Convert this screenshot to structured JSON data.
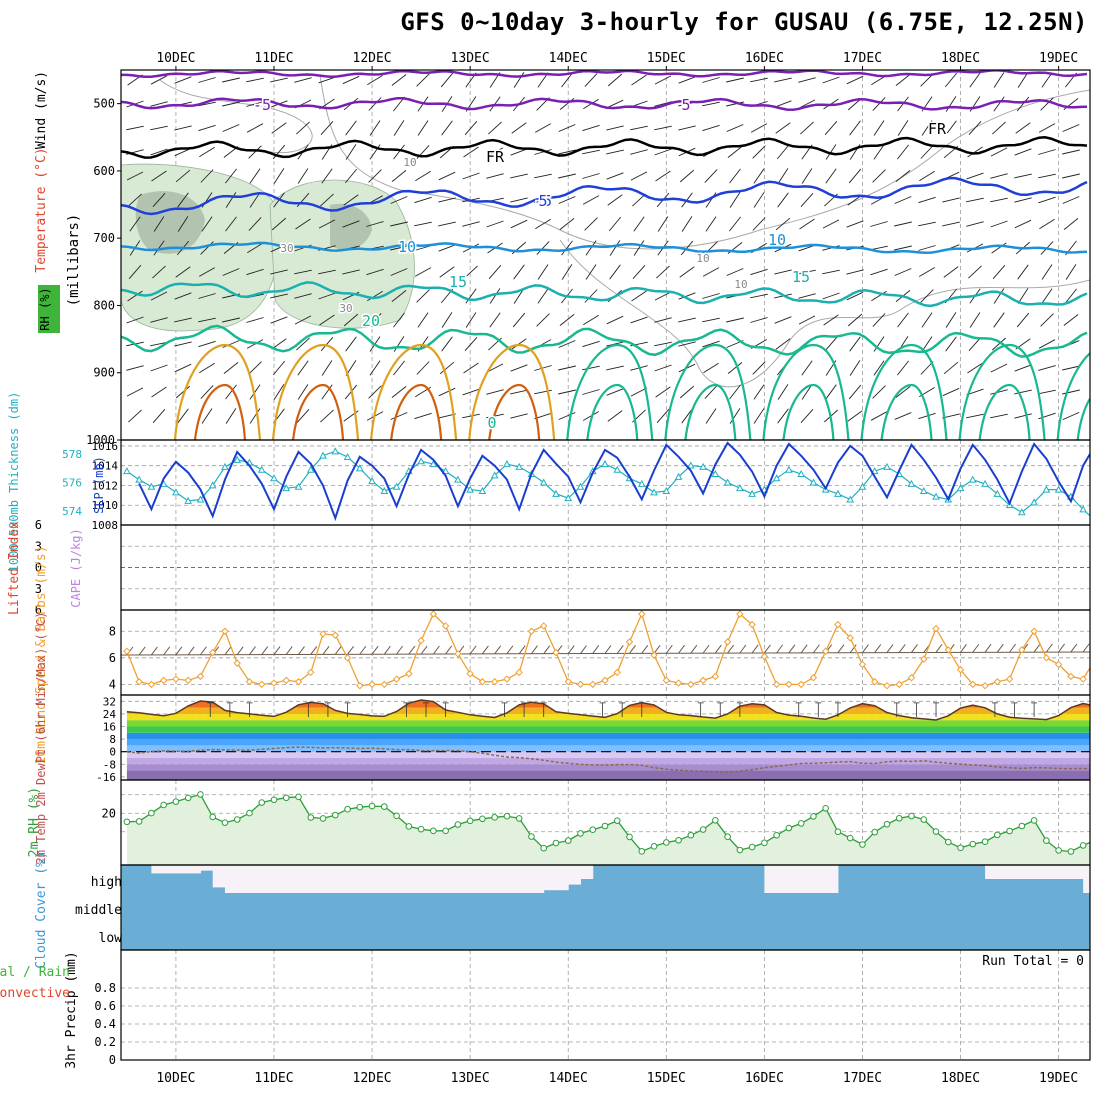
{
  "title": "GFS 0~10day 3-hourly for GUSAU (6.75E, 12.25N)",
  "colors": {
    "grid": "#9e9e9e",
    "temp_purple": "#7a1fb3",
    "temp_black": "#000000",
    "temp_blue": "#1f3fd8",
    "temp_lightblue": "#1e90d8",
    "temp_teal": "#1ab0b0",
    "temp_green": "#18b890",
    "temp_orange": "#e0a020",
    "temp_darkorange": "#d06010",
    "temp_magenta": "#c0107a",
    "rh_fill": "#d8ead4",
    "rh_dark": "#9aaa96",
    "slp": "#1a3fcf",
    "thickness": "#20b0c0",
    "wind": "#f0a030",
    "rh2m": "#2e9e3a",
    "cloud": "#6aaed6",
    "lifted": "#e0452d",
    "cape": "#c080e0"
  },
  "chart_data": [
    {
      "id": "upper_air",
      "type": "contour",
      "ylabel_parts": [
        "Wind (m/s)",
        "Temperature (°C)",
        "(millibars)",
        "RH (%)"
      ],
      "ytick_labels": [
        "500",
        "600",
        "700",
        "800",
        "900",
        "1000"
      ],
      "yticks": [
        500,
        600,
        700,
        800,
        900,
        1000
      ],
      "ylim": [
        1000,
        450
      ],
      "contour_labels": [
        "-5",
        "5",
        "FR",
        "FR",
        "-5",
        "5",
        "10",
        "10",
        "15",
        "15",
        "20",
        "0",
        "10",
        "10",
        "10",
        "30",
        "30"
      ]
    },
    {
      "id": "slp_thickness",
      "type": "line",
      "ylabel_left": "1000-500mb Thickness (dm)",
      "ylabel_right": "SLP (mb)",
      "left_tick_labels": [
        "578",
        "576",
        "574"
      ],
      "left_ticks": [
        578,
        576,
        574
      ],
      "right_tick_labels": [
        "1016",
        "1014",
        "1012",
        "1010",
        "1008"
      ],
      "right_ticks": [
        1016,
        1014,
        1012,
        1010,
        1008
      ],
      "thickness_ylim": [
        573,
        579
      ],
      "slp_ylim": [
        1008,
        1016.6
      ],
      "series": [
        {
          "name": "1000-500mb Thickness (dm)",
          "axis": "left",
          "values": [
            576.8,
            576.2,
            575.7,
            575.9,
            575.3,
            574.7,
            574.8,
            575.8,
            577.1,
            577.6,
            577.4,
            576.9,
            576.3,
            575.6,
            575.7,
            576.9,
            577.9,
            578.2,
            577.8,
            577.0,
            576.1,
            575.4,
            575.7,
            576.8,
            577.5,
            577.3,
            576.8,
            576.2,
            575.5,
            575.4,
            576.5,
            577.3,
            577.1,
            576.6,
            576.0,
            575.2,
            574.9,
            575.7,
            576.8,
            577.3,
            576.9,
            576.3,
            575.9,
            575.3,
            575.4,
            576.4,
            577.2,
            577.1,
            576.6,
            576.0,
            575.6,
            575.2,
            575.5,
            576.3,
            576.9,
            576.6,
            576.0,
            575.5,
            575.2,
            574.8,
            575.7,
            576.8,
            577.1,
            576.6,
            575.9,
            575.4,
            575.0,
            574.8,
            575.6,
            576.2,
            575.9,
            575.2,
            574.4,
            573.9,
            574.6,
            575.5,
            575.5,
            575.0,
            574.1,
            573.3,
            572.6
          ]
        },
        {
          "name": "SLP (mb)",
          "axis": "right",
          "values": [
            1012.2,
            1009.6,
            1012.7,
            1014.4,
            1013.3,
            1011.6,
            1008.9,
            1012.6,
            1015.4,
            1014.0,
            1012.2,
            1009.6,
            1012.9,
            1015.4,
            1014.2,
            1012.0,
            1008.7,
            1012.5,
            1014.9,
            1014.0,
            1012.7,
            1009.9,
            1013.1,
            1015.6,
            1014.6,
            1013.0,
            1009.9,
            1012.7,
            1015.0,
            1014.0,
            1012.6,
            1009.6,
            1013.2,
            1015.6,
            1014.2,
            1012.9,
            1010.3,
            1013.3,
            1015.6,
            1014.8,
            1012.9,
            1010.6,
            1013.5,
            1016.1,
            1014.9,
            1013.5,
            1011.2,
            1014.1,
            1016.3,
            1015.1,
            1013.4,
            1010.9,
            1014.0,
            1016.2,
            1015.0,
            1013.6,
            1011.7,
            1014.3,
            1016.0,
            1015.0,
            1012.9,
            1010.8,
            1013.5,
            1016.1,
            1014.6,
            1012.8,
            1010.6,
            1013.7,
            1016.1,
            1014.6,
            1012.6,
            1010.2,
            1013.4,
            1016.2,
            1014.7,
            1012.4,
            1010.4,
            1014.0,
            1016.1,
            1015.2,
            1016.5
          ]
        }
      ]
    },
    {
      "id": "li_cape",
      "type": "line",
      "ylabel_left": "Lifted Index",
      "ylabel_right": "CAPE (J/kg)",
      "ytick_labels": [
        "6",
        "3",
        "0",
        "3",
        "6"
      ],
      "yticks": [
        6,
        3,
        0,
        -3,
        -6
      ],
      "ylim": [
        -6,
        6
      ],
      "series": []
    },
    {
      "id": "wind10m",
      "type": "line",
      "ylabel": "10m Wind Speed & Barbs (m/s)",
      "ytick_labels": [
        "8",
        "6",
        "4"
      ],
      "yticks": [
        8,
        6,
        4
      ],
      "ylim": [
        3.2,
        9.6
      ],
      "series": [
        {
          "name": "10m Wind Speed",
          "values": [
            6.5,
            4.2,
            4.0,
            4.3,
            4.4,
            4.3,
            4.6,
            6.4,
            8.0,
            5.6,
            4.2,
            4.0,
            4.1,
            4.3,
            4.2,
            4.9,
            7.8,
            7.7,
            6.0,
            3.9,
            4.0,
            4.0,
            4.4,
            4.8,
            7.3,
            9.3,
            8.4,
            6.3,
            4.8,
            4.2,
            4.2,
            4.4,
            4.9,
            8.0,
            8.4,
            6.4,
            4.2,
            4.0,
            4.0,
            4.3,
            4.9,
            7.2,
            9.3,
            6.2,
            4.3,
            4.1,
            4.0,
            4.3,
            4.6,
            7.2,
            9.3,
            8.5,
            6.1,
            4.0,
            4.0,
            4.0,
            4.5,
            6.5,
            8.5,
            7.5,
            5.5,
            4.2,
            3.9,
            4.0,
            4.5,
            5.9,
            8.2,
            6.6,
            5.1,
            4.0,
            3.9,
            4.2,
            4.4,
            6.6,
            8.0,
            6.0,
            5.5,
            4.6,
            4.4,
            5.9,
            7.6
          ]
        }
      ]
    },
    {
      "id": "temp2m",
      "type": "area",
      "ylabel": "2m Temp 2m DewPt (6hr Min/Max) (°C)",
      "ytick_labels": [
        "32",
        "24",
        "16",
        "8",
        "0",
        "-8",
        "-16"
      ],
      "yticks": [
        32,
        24,
        16,
        8,
        0,
        -8,
        -16
      ],
      "ylim": [
        -18,
        36
      ],
      "series": [
        {
          "name": "2m Temp",
          "values": [
            25.4,
            24.7,
            23.7,
            22.8,
            24.4,
            29.1,
            32.2,
            31.5,
            26.2,
            24.8,
            24.0,
            23.1,
            22.4,
            25.1,
            29.8,
            31.3,
            30.5,
            26.2,
            24.3,
            23.6,
            22.7,
            22.5,
            25.5,
            30.8,
            32.8,
            31.8,
            26.5,
            25.0,
            23.4,
            22.5,
            21.7,
            24.6,
            29.8,
            31.4,
            30.4,
            25.3,
            24.3,
            23.4,
            22.6,
            21.8,
            24.2,
            29.4,
            31.2,
            29.7,
            25.0,
            23.4,
            22.9,
            22.0,
            21.3,
            23.9,
            28.9,
            30.4,
            29.7,
            24.9,
            23.2,
            22.5,
            21.4,
            20.6,
            23.3,
            27.8,
            30.5,
            29.2,
            24.9,
            22.9,
            21.5,
            20.8,
            20.1,
            22.8,
            27.7,
            29.5,
            27.9,
            24.0,
            21.9,
            21.2,
            20.8,
            20.4,
            22.9,
            28.0,
            30.6,
            29.0,
            24.1,
            22.3,
            21.4,
            20.8,
            20.1,
            19.2,
            18.7
          ]
        },
        {
          "name": "2m DewPt",
          "values": [
            -0.1,
            -0.9,
            0.1,
            0.5,
            0.3,
            0.3,
            0.9,
            1.4,
            1.1,
            1.0,
            1.0,
            1.5,
            2.0,
            2.6,
            2.9,
            2.7,
            2.4,
            2.6,
            2.3,
            2.0,
            2.2,
            1.8,
            1.3,
            1.3,
            0.6,
            0.6,
            0.7,
            0.6,
            0.0,
            -1.0,
            -2.3,
            -3.4,
            -3.8,
            -4.5,
            -5.4,
            -6.6,
            -7.4,
            -8.1,
            -8.4,
            -8.5,
            -8.2,
            -8.2,
            -8.6,
            -10.2,
            -11.2,
            -11.8,
            -12.2,
            -12.5,
            -12.8,
            -13.1,
            -12.5,
            -11.4,
            -10.2,
            -9.3,
            -8.4,
            -7.5,
            -7.4,
            -7.1,
            -6.6,
            -6.3,
            -7.4,
            -7.5,
            -6.4,
            -6.0,
            -6.2,
            -5.8,
            -6.6,
            -7.4,
            -7.9,
            -8.5,
            -8.8,
            -9.7,
            -10.2,
            -10.6,
            -10.1,
            -10.3,
            -10.6,
            -10.8,
            -10.7,
            -11.3,
            -11.9,
            -11.7,
            -11.5,
            -11.1,
            -10.6,
            -10.5,
            -9.3
          ]
        }
      ]
    },
    {
      "id": "rh2m",
      "type": "line",
      "ylabel": "2m RH (%)",
      "ytick_labels": [
        "20"
      ],
      "yticks": [
        20
      ],
      "ylim": [
        -8,
        38
      ],
      "series": [
        {
          "name": "2m RH",
          "values": [
            15.4,
            15.6,
            20.1,
            24.5,
            26.3,
            28.3,
            30.2,
            18.0,
            14.9,
            16.6,
            20.1,
            25.8,
            27.3,
            28.4,
            28.9,
            17.7,
            17.2,
            19.0,
            22.2,
            23.3,
            23.9,
            23.6,
            18.6,
            12.9,
            11.4,
            10.5,
            10.5,
            13.9,
            15.9,
            17.0,
            17.8,
            18.4,
            17.2,
            7.4,
            1.1,
            3.9,
            5.2,
            9.1,
            11.1,
            13.1,
            16.0,
            7.2,
            -0.6,
            2.1,
            4.2,
            5.4,
            8.1,
            11.2,
            16.2,
            7.3,
            0.1,
            1.7,
            4.0,
            8.1,
            12.0,
            14.5,
            18.3,
            22.7,
            10.0,
            6.6,
            3.1,
            9.8,
            14.1,
            17.3,
            18.5,
            16.6,
            10.1,
            4.4,
            1.3,
            3.3,
            4.6,
            8.3,
            10.4,
            13.1,
            16.1,
            5.2,
            -0.1,
            -0.7,
            2.6,
            5.4,
            13.5,
            14.6,
            16.2,
            17.8,
            21.3
          ]
        }
      ]
    },
    {
      "id": "cloud",
      "type": "area",
      "ylabel": "Cloud Cover (%)",
      "ytick_labels": [
        "high",
        "middle",
        "low"
      ],
      "series": [
        {
          "name": "high cloud fraction",
          "values": [
            1.0,
            1.0,
            0.7,
            0.7,
            0.7,
            0.7,
            0.8,
            0.2,
            0.0,
            0.0,
            0.0,
            0.0,
            0.0,
            0.0,
            0.0,
            0.0,
            0.0,
            0.0,
            0.0,
            0.0,
            0.0,
            0.0,
            0.0,
            0.0,
            0.0,
            0.0,
            0.0,
            0.0,
            0.0,
            0.0,
            0.0,
            0.0,
            0.0,
            0.0,
            0.1,
            0.1,
            0.3,
            0.5,
            1.0,
            1.0,
            1.0,
            1.0,
            1.0,
            1.0,
            1.0,
            1.0,
            1.0,
            1.0,
            1.0,
            1.0,
            1.0,
            1.0,
            0.0,
            0.0,
            0.0,
            0.0,
            0.0,
            0.0,
            1.0,
            1.0,
            1.0,
            1.0,
            1.0,
            1.0,
            1.0,
            1.0,
            1.0,
            1.0,
            1.0,
            1.0,
            0.5,
            0.5,
            0.5,
            0.5,
            0.5,
            0.5,
            0.5,
            0.5,
            0.0,
            0.0,
            0.0,
            0.0,
            0.0,
            0.0,
            1.0,
            1.0,
            1.0
          ]
        }
      ]
    },
    {
      "id": "precip",
      "type": "bar",
      "ylabel": "3hr Precip (mm)",
      "ylabel_left": "Total / Rain",
      "ylabel_left2": "Convective",
      "annotation": "Run Total = 0",
      "ytick_labels": [
        "0.8",
        "0.6",
        "0.4",
        "0.2",
        "0"
      ],
      "yticks": [
        0.8,
        0.6,
        0.4,
        0.2,
        0
      ],
      "ylim": [
        0,
        1
      ],
      "values": []
    }
  ],
  "x_axis": {
    "day_labels": [
      "10DEC",
      "11DEC",
      "12DEC",
      "13DEC",
      "14DEC",
      "15DEC",
      "16DEC",
      "17DEC",
      "18DEC",
      "19DEC"
    ],
    "day_offsets": [
      0,
      1,
      2,
      3,
      4,
      5,
      6,
      7,
      8,
      9
    ],
    "xlim": [
      -0.56,
      9.32
    ]
  }
}
